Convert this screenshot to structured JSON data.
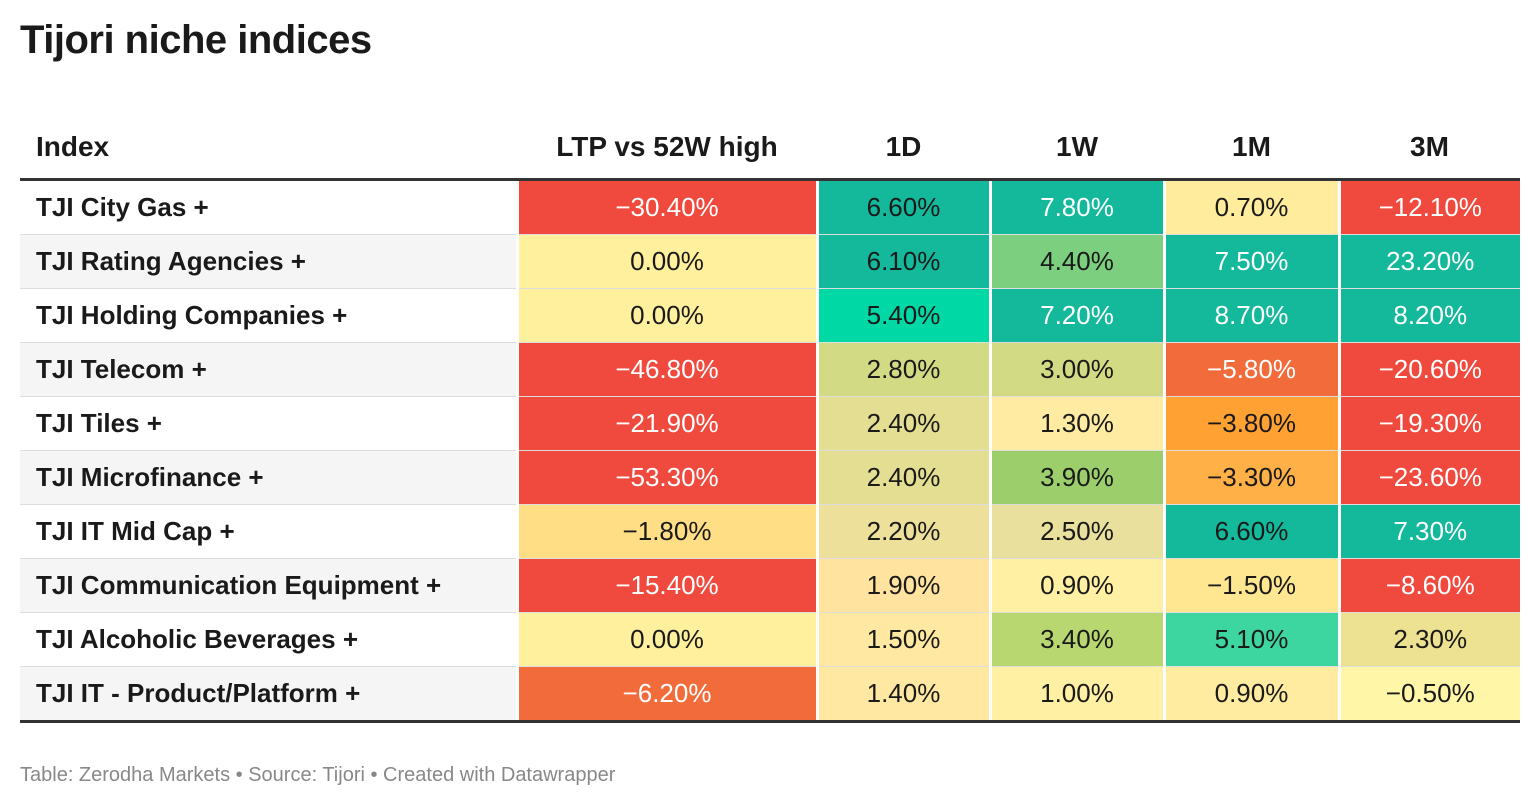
{
  "title": "Tijori niche indices",
  "footer": "Table: Zerodha Markets • Source: Tijori • Created with Datawrapper",
  "chart_data": {
    "type": "table",
    "columns": [
      "Index",
      "LTP vs 52W high",
      "1D",
      "1W",
      "1M",
      "3M"
    ],
    "rows": [
      {
        "name": "TJI City Gas +",
        "values": [
          "−30.40%",
          "6.60%",
          "7.80%",
          "0.70%",
          "−12.10%"
        ]
      },
      {
        "name": "TJI Rating Agencies +",
        "values": [
          "0.00%",
          "6.10%",
          "4.40%",
          "7.50%",
          "23.20%"
        ]
      },
      {
        "name": "TJI Holding Companies +",
        "values": [
          "0.00%",
          "5.40%",
          "7.20%",
          "8.70%",
          "8.20%"
        ]
      },
      {
        "name": "TJI Telecom +",
        "values": [
          "−46.80%",
          "2.80%",
          "3.00%",
          "−5.80%",
          "−20.60%"
        ]
      },
      {
        "name": "TJI Tiles +",
        "values": [
          "−21.90%",
          "2.40%",
          "1.30%",
          "−3.80%",
          "−19.30%"
        ]
      },
      {
        "name": "TJI Microfinance +",
        "values": [
          "−53.30%",
          "2.40%",
          "3.90%",
          "−3.30%",
          "−23.60%"
        ]
      },
      {
        "name": "TJI IT Mid Cap +",
        "values": [
          "−1.80%",
          "2.20%",
          "2.50%",
          "6.60%",
          "7.30%"
        ]
      },
      {
        "name": "TJI Communication Equipment +",
        "values": [
          "−15.40%",
          "1.90%",
          "0.90%",
          "−1.50%",
          "−8.60%"
        ]
      },
      {
        "name": "TJI Alcoholic Beverages +",
        "values": [
          "0.00%",
          "1.50%",
          "3.40%",
          "5.10%",
          "2.30%"
        ]
      },
      {
        "name": "TJI IT - Product/Platform +",
        "values": [
          "−6.20%",
          "1.40%",
          "1.00%",
          "0.90%",
          "−0.50%"
        ]
      }
    ],
    "cell_colors": [
      [
        "#f04a3e",
        "#13b99a",
        "#13b99a",
        "#ffec9c",
        "#f04a3e"
      ],
      [
        "#fff09e",
        "#13b99a",
        "#7ccf7e",
        "#13b99a",
        "#13b99a"
      ],
      [
        "#fff09e",
        "#00d8a6",
        "#13b99a",
        "#13b99a",
        "#13b99a"
      ],
      [
        "#f04a3e",
        "#d3da84",
        "#d3da84",
        "#f26b3a",
        "#f04a3e"
      ],
      [
        "#f04a3e",
        "#e4de92",
        "#ffeba2",
        "#ffa233",
        "#f04a3e"
      ],
      [
        "#f04a3e",
        "#e4de92",
        "#9ccf6c",
        "#ffb046",
        "#f04a3e"
      ],
      [
        "#ffde86",
        "#ede09a",
        "#e8e09c",
        "#13b99a",
        "#13b99a"
      ],
      [
        "#f04a3e",
        "#ffe39e",
        "#fff0a4",
        "#ffe792",
        "#f04a3e"
      ],
      [
        "#fff09e",
        "#ffe9a2",
        "#b8d771",
        "#3dd6a0",
        "#ede192"
      ],
      [
        "#f26b3a",
        "#ffe9a2",
        "#fff0a4",
        "#ffeca0",
        "#fff6a8"
      ]
    ],
    "light_text": [
      [
        true,
        false,
        true,
        false,
        true
      ],
      [
        false,
        false,
        false,
        true,
        true
      ],
      [
        false,
        false,
        true,
        true,
        true
      ],
      [
        true,
        false,
        false,
        true,
        true
      ],
      [
        true,
        false,
        false,
        false,
        true
      ],
      [
        true,
        false,
        false,
        false,
        true
      ],
      [
        false,
        false,
        false,
        false,
        true
      ],
      [
        true,
        false,
        false,
        false,
        true
      ],
      [
        false,
        false,
        false,
        false,
        false
      ],
      [
        true,
        false,
        false,
        false,
        false
      ]
    ]
  }
}
